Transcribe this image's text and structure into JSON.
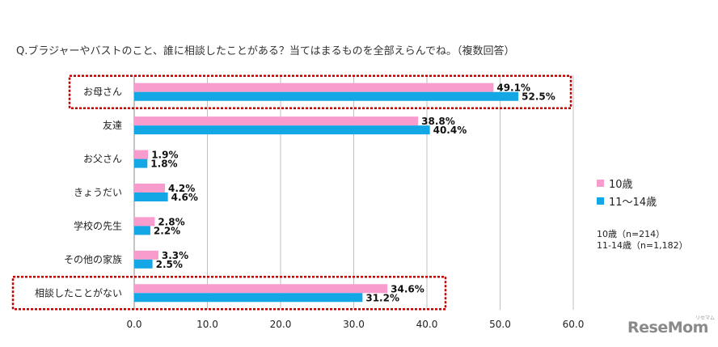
{
  "question": "Q.ブラジャーやバストのこと、誰に相談したことがある？当てはまるものを全部えらんでね。（複数回答）",
  "chart_data": {
    "type": "bar",
    "orientation": "horizontal",
    "categories": [
      "お母さん",
      "友達",
      "お父さん",
      "きょうだい",
      "学校の先生",
      "その他の家族",
      "相談したことがない"
    ],
    "series": [
      {
        "name": "10歳",
        "color": "#f79ccc",
        "values": [
          49.1,
          38.8,
          1.9,
          4.2,
          2.8,
          3.3,
          34.6
        ],
        "labels": [
          "49.1%",
          "38.8%",
          "1.9%",
          "4.2%",
          "2.8%",
          "3.3%",
          "34.6%"
        ]
      },
      {
        "name": "11〜14歳",
        "color": "#14a7e6",
        "values": [
          52.5,
          40.4,
          1.8,
          4.6,
          2.2,
          2.5,
          31.2
        ],
        "labels": [
          "52.5%",
          "40.4%",
          "1.8%",
          "4.6%",
          "2.2%",
          "2.5%",
          "31.2%"
        ]
      }
    ],
    "xlim": [
      0,
      60
    ],
    "xticks": [
      "0.0",
      "10.0",
      "20.0",
      "30.0",
      "40.0",
      "50.0",
      "60.0"
    ],
    "grid": true,
    "legend_position": "right",
    "highlighted_categories": [
      "お母さん",
      "相談したことがない"
    ]
  },
  "legend": {
    "item1": "10歳",
    "item2": "11〜14歳"
  },
  "note": {
    "line1": "10歳（n=214）",
    "line2": "11-14歳（n=1,182）"
  },
  "logo": {
    "text": "ReseMom",
    "kana": "リセマム"
  },
  "colors": {
    "highlight_border": "#c00000",
    "gridline": "#bfbfbf",
    "axis": "#888888"
  }
}
